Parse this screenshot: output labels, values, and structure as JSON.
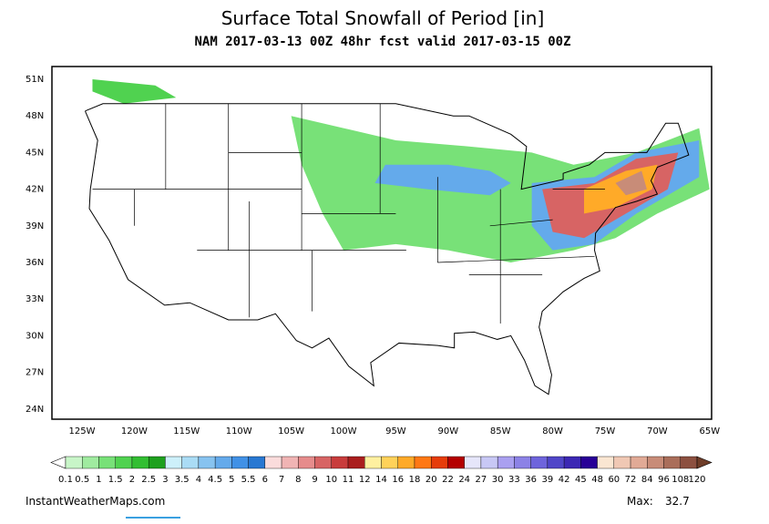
{
  "header": {
    "title": "Surface Total Snowfall of Period [in]",
    "subtitle": "NAM 2017-03-13 00Z 48hr fcst valid 2017-03-15 00Z"
  },
  "map": {
    "lat_labels": [
      "51N",
      "48N",
      "45N",
      "42N",
      "39N",
      "36N",
      "33N",
      "30N",
      "27N",
      "24N"
    ],
    "lon_labels": [
      "125W",
      "120W",
      "115W",
      "110W",
      "105W",
      "100W",
      "95W",
      "90W",
      "85W",
      "80W",
      "75W",
      "70W",
      "65W"
    ]
  },
  "colorbar": {
    "labels": [
      "0.1",
      "0.5",
      "1",
      "1.5",
      "2",
      "2.5",
      "3",
      "3.5",
      "4",
      "4.5",
      "5",
      "5.5",
      "6",
      "7",
      "8",
      "9",
      "10",
      "11",
      "12",
      "14",
      "16",
      "18",
      "20",
      "22",
      "24",
      "27",
      "30",
      "33",
      "36",
      "39",
      "42",
      "45",
      "48",
      "60",
      "72",
      "84",
      "96",
      "108",
      "120"
    ],
    "colors": [
      "#c8f5c8",
      "#a0eba0",
      "#78e178",
      "#50d250",
      "#32be32",
      "#1ea01e",
      "#cdf0fa",
      "#aadcf5",
      "#87c3f0",
      "#64aaeb",
      "#4191e6",
      "#2878d2",
      "#fadcdc",
      "#f0b4b4",
      "#e68c8c",
      "#d76464",
      "#c83c3c",
      "#aa1e1e",
      "#fff0a0",
      "#ffd25a",
      "#ffaa28",
      "#ff7814",
      "#e63c0a",
      "#b40000",
      "#e6e6fa",
      "#c8c8f5",
      "#aaa0f0",
      "#8c82e6",
      "#6e64dc",
      "#5046c8",
      "#3c28b4",
      "#280096",
      "#fae6d2",
      "#f0c8b4",
      "#e1aa96",
      "#c88c78",
      "#aa6e5a",
      "#8c5040"
    ]
  },
  "footer": {
    "site": "InstantWeatherMaps.com",
    "max_label": "Max:",
    "max_value": 32.7
  }
}
